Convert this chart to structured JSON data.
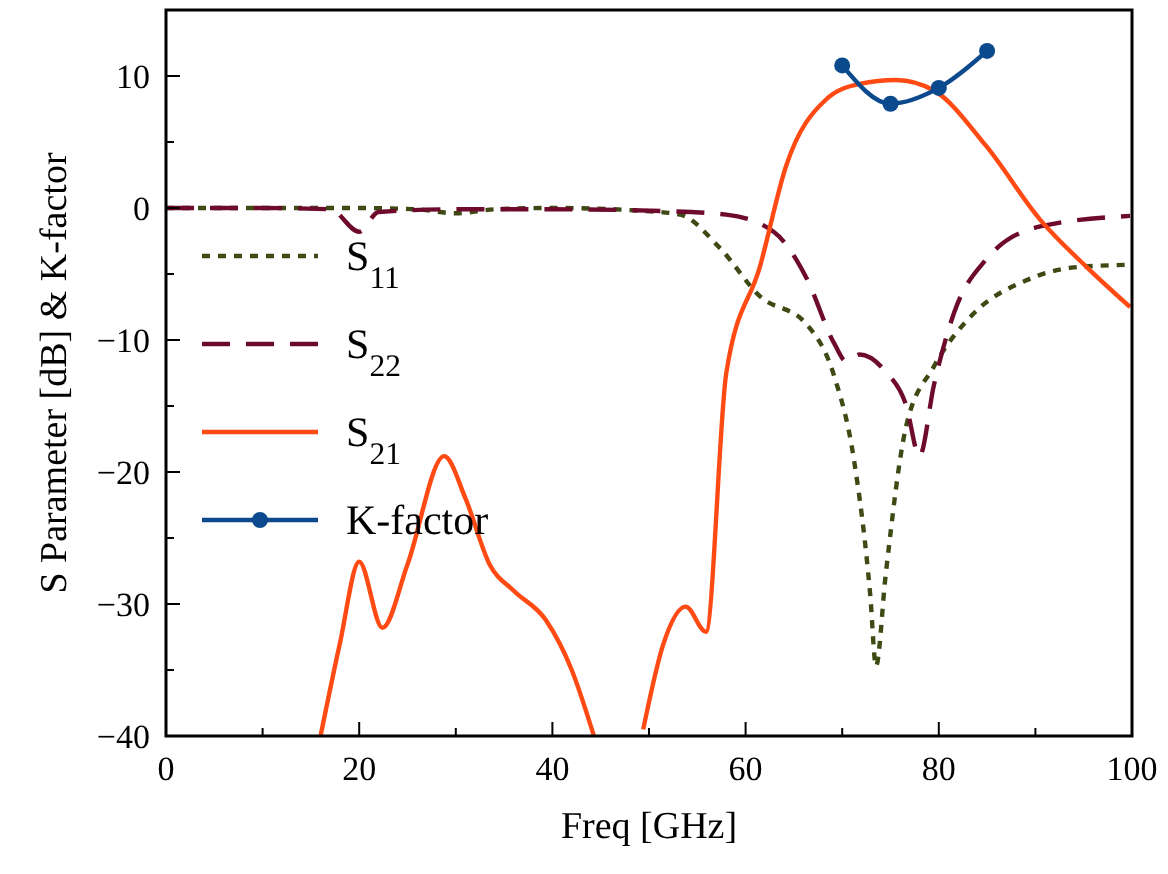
{
  "chart_data": {
    "type": "line",
    "xlabel": "Freq [GHz]",
    "ylabel": "S Parameter [dB] & K-factor",
    "xlim": [
      0,
      100
    ],
    "ylim": [
      -40,
      15
    ],
    "xticks": [
      0,
      {
        "value": 10,
        "label": null
      },
      20,
      {
        "value": 30,
        "label": null
      },
      40,
      {
        "value": 50,
        "label": null
      },
      60,
      {
        "value": 70,
        "label": null
      },
      80,
      {
        "value": 90,
        "label": null
      },
      100
    ],
    "yticks": [
      -40,
      {
        "value": -35,
        "label": null
      },
      -30,
      {
        "value": -25,
        "label": null
      },
      -20,
      {
        "value": -15,
        "label": null
      },
      -10,
      {
        "value": -5,
        "label": null
      },
      0,
      {
        "value": 5,
        "label": null
      },
      10
    ],
    "grid": false,
    "legend": "left",
    "marker": "none",
    "series": [
      {
        "name": "S$_{11}$",
        "color": "#3d4a14",
        "line_style": "dotted",
        "x": [
          0,
          10,
          20,
          26,
          30,
          34,
          40,
          49,
          53.2,
          57.3,
          61.5,
          66.3,
          69.2,
          71.2,
          72.9,
          73.5,
          74.5,
          76.6,
          79.5,
          83.6,
          89,
          94,
          99.8
        ],
        "values": [
          0,
          0,
          0,
          -0.1,
          -0.4,
          -0.1,
          0,
          -0.2,
          -0.5,
          -3,
          -6.7,
          -8.8,
          -12.8,
          -19,
          -29.3,
          -34.7,
          -27.8,
          -16.6,
          -12,
          -8,
          -5.5,
          -4.5,
          -4.3
        ]
      },
      {
        "name": "S$_{22}$",
        "color": "#6e0b2c",
        "line_style": "dashed",
        "x": [
          0,
          10,
          17,
          20,
          22,
          30,
          40,
          50,
          58,
          62.9,
          66.3,
          69.2,
          70.4,
          71.8,
          74.5,
          76.6,
          78,
          79.5,
          81.6,
          84.9,
          90.5,
          99.8
        ],
        "values": [
          0,
          0,
          -0.1,
          -1.8,
          -0.3,
          -0.1,
          -0.1,
          -0.2,
          -0.5,
          -1.8,
          -5.3,
          -10.3,
          -11.6,
          -11.1,
          -12.4,
          -14.9,
          -18.8,
          -13.4,
          -7.9,
          -3.9,
          -1.4,
          -0.6
        ]
      },
      {
        "name": "S$_{21}$",
        "color": "#ff4a14",
        "line_style": "solid",
        "x": [
          16,
          18,
          20,
          22.4,
          25,
          28.8,
          31,
          33.5,
          36,
          39.3,
          42,
          44.3,
          46,
          49.4,
          51.5,
          53.8,
          55.9,
          58,
          61.5,
          64.2,
          68.3,
          71.8,
          75.6,
          79.5,
          84.9,
          90.5,
          95.2,
          99.8
        ],
        "values": [
          -40,
          -33,
          -26.8,
          -31.8,
          -27,
          -18.8,
          -22,
          -27,
          -29,
          -31.2,
          -35,
          -40,
          null,
          -39.5,
          -33,
          -30.2,
          -32.1,
          -12.5,
          -4.4,
          3.2,
          8.2,
          9.4,
          9.7,
          8.9,
          4.7,
          -0.9,
          -4.4,
          -7.5
        ]
      },
      {
        "name": "K-factor",
        "color": "#0b4a8c",
        "line_style": "solid",
        "marker": "circle",
        "x": [
          70,
          75,
          80,
          85
        ],
        "values": [
          10.8,
          7.9,
          9.1,
          11.9
        ]
      }
    ]
  }
}
